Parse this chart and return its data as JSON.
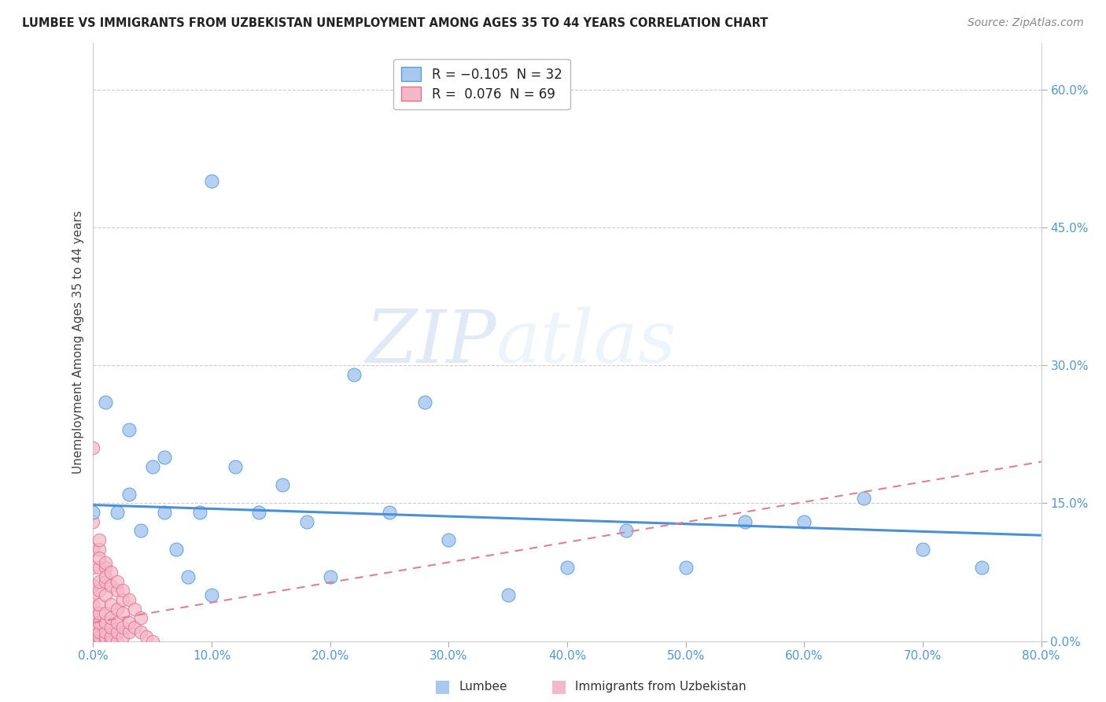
{
  "title": "LUMBEE VS IMMIGRANTS FROM UZBEKISTAN UNEMPLOYMENT AMONG AGES 35 TO 44 YEARS CORRELATION CHART",
  "source": "Source: ZipAtlas.com",
  "ylabel": "Unemployment Among Ages 35 to 44 years",
  "xlim": [
    0.0,
    0.8
  ],
  "ylim": [
    0.0,
    0.65
  ],
  "lumbee_R": -0.105,
  "lumbee_N": 32,
  "uzbekistan_R": 0.076,
  "uzbekistan_N": 69,
  "lumbee_color": "#a8c8f0",
  "uzbekistan_color": "#f4b8c8",
  "lumbee_edge_color": "#5a9fd4",
  "uzbekistan_edge_color": "#e07090",
  "lumbee_line_color": "#4a90d9",
  "uzbekistan_line_color": "#e08090",
  "watermark_zip": "ZIP",
  "watermark_atlas": "atlas",
  "lumbee_x": [
    0.02,
    0.03,
    0.04,
    0.05,
    0.06,
    0.07,
    0.08,
    0.09,
    0.1,
    0.12,
    0.14,
    0.16,
    0.18,
    0.2,
    0.22,
    0.25,
    0.28,
    0.3,
    0.35,
    0.4,
    0.45,
    0.5,
    0.55,
    0.6,
    0.65,
    0.7,
    0.75,
    0.0,
    0.01,
    0.03,
    0.06,
    0.1
  ],
  "lumbee_y": [
    0.14,
    0.23,
    0.12,
    0.19,
    0.14,
    0.1,
    0.07,
    0.14,
    0.05,
    0.19,
    0.14,
    0.17,
    0.13,
    0.07,
    0.29,
    0.14,
    0.26,
    0.11,
    0.05,
    0.08,
    0.12,
    0.08,
    0.13,
    0.13,
    0.155,
    0.1,
    0.08,
    0.14,
    0.26,
    0.16,
    0.2,
    0.5
  ],
  "uzbekistan_x": [
    0.0,
    0.0,
    0.0,
    0.0,
    0.0,
    0.0,
    0.0,
    0.0,
    0.0,
    0.0,
    0.0,
    0.0,
    0.0,
    0.0,
    0.0,
    0.0,
    0.0,
    0.0,
    0.0,
    0.0,
    0.005,
    0.005,
    0.005,
    0.005,
    0.005,
    0.005,
    0.005,
    0.005,
    0.005,
    0.005,
    0.01,
    0.01,
    0.01,
    0.01,
    0.01,
    0.01,
    0.01,
    0.01,
    0.015,
    0.015,
    0.015,
    0.015,
    0.015,
    0.02,
    0.02,
    0.02,
    0.02,
    0.025,
    0.025,
    0.025,
    0.03,
    0.03,
    0.035,
    0.04,
    0.045,
    0.05,
    0.01,
    0.015,
    0.02,
    0.025,
    0.005,
    0.005,
    0.01,
    0.015,
    0.02,
    0.025,
    0.03,
    0.035,
    0.04
  ],
  "uzbekistan_y": [
    0.0,
    0.0,
    0.0,
    0.0,
    0.0,
    0.0,
    0.0,
    0.005,
    0.01,
    0.015,
    0.02,
    0.025,
    0.03,
    0.04,
    0.05,
    0.06,
    0.08,
    0.1,
    0.13,
    0.21,
    0.0,
    0.005,
    0.01,
    0.02,
    0.03,
    0.04,
    0.055,
    0.065,
    0.08,
    0.1,
    0.0,
    0.005,
    0.01,
    0.02,
    0.03,
    0.05,
    0.065,
    0.08,
    0.0,
    0.005,
    0.015,
    0.025,
    0.04,
    0.0,
    0.01,
    0.02,
    0.035,
    0.005,
    0.015,
    0.03,
    0.01,
    0.02,
    0.015,
    0.01,
    0.005,
    0.0,
    0.07,
    0.06,
    0.055,
    0.045,
    0.11,
    0.09,
    0.085,
    0.075,
    0.065,
    0.055,
    0.045,
    0.035,
    0.025
  ],
  "lumbee_line_x0": 0.0,
  "lumbee_line_x1": 0.8,
  "lumbee_line_y0": 0.148,
  "lumbee_line_y1": 0.115,
  "uzbekistan_line_x0": 0.0,
  "uzbekistan_line_x1": 0.8,
  "uzbekistan_line_y0": 0.02,
  "uzbekistan_line_y1": 0.195
}
